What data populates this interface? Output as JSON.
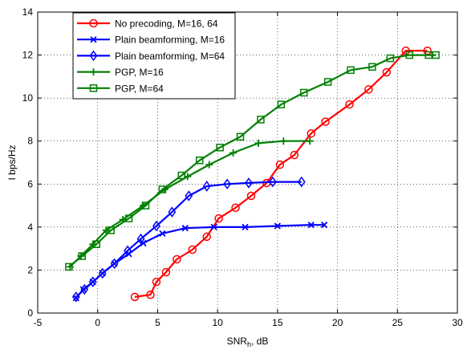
{
  "chart_data": {
    "type": "line",
    "title": "",
    "xlabel_main": "SNR",
    "xlabel_sub": "h",
    "xlabel_unit": ", dB",
    "ylabel": "I bps/Hz",
    "xlim": [
      -5,
      30
    ],
    "ylim": [
      0,
      14
    ],
    "xticks": [
      -5,
      0,
      5,
      10,
      15,
      20,
      25,
      30
    ],
    "yticks": [
      0,
      2,
      4,
      6,
      8,
      10,
      12,
      14
    ],
    "grid": true,
    "grid_style": "dotted",
    "legend_position": "top-left",
    "series": [
      {
        "name": "No precoding, M=16, 64",
        "color": "#ff0000",
        "marker": "circle",
        "x": [
          3.1,
          4.4,
          4.9,
          5.7,
          6.6,
          7.9,
          9.1,
          10.1,
          11.5,
          12.8,
          14.1,
          15.2,
          16.4,
          17.8,
          19.0,
          21.0,
          22.6,
          24.1,
          25.7,
          27.5
        ],
        "y": [
          0.75,
          0.85,
          1.45,
          1.9,
          2.5,
          2.95,
          3.55,
          4.4,
          4.9,
          5.45,
          6.05,
          6.9,
          7.35,
          8.35,
          8.9,
          9.7,
          10.4,
          11.2,
          12.2,
          12.2
        ]
      },
      {
        "name": "Plain beamforming, M=16",
        "color": "#0000ff",
        "marker": "x",
        "x": [
          -1.8,
          -1.2,
          -0.4,
          0.4,
          1.4,
          2.6,
          3.8,
          5.4,
          7.3,
          9.7,
          12.3,
          15.0,
          17.8,
          18.9
        ],
        "y": [
          0.7,
          1.1,
          1.45,
          1.85,
          2.3,
          2.75,
          3.25,
          3.7,
          3.95,
          4.0,
          4.0,
          4.05,
          4.1,
          4.1
        ]
      },
      {
        "name": "Plain beamforming, M=64",
        "color": "#0000ff",
        "marker": "diamond",
        "x": [
          -1.8,
          -1.1,
          -0.4,
          0.4,
          1.4,
          2.5,
          3.6,
          4.9,
          6.2,
          7.6,
          9.1,
          10.8,
          12.6,
          14.6,
          17.0
        ],
        "y": [
          0.75,
          1.1,
          1.45,
          1.85,
          2.3,
          2.9,
          3.45,
          4.05,
          4.7,
          5.45,
          5.9,
          6.0,
          6.05,
          6.1,
          6.1
        ]
      },
      {
        "name": "PGP, M=16",
        "color": "#008000",
        "marker": "plus",
        "x": [
          -2.3,
          -1.4,
          -0.4,
          0.7,
          2.1,
          3.8,
          5.6,
          7.5,
          9.3,
          11.3,
          13.4,
          15.5,
          17.7
        ],
        "y": [
          2.15,
          2.65,
          3.2,
          3.85,
          4.35,
          5.0,
          5.75,
          6.35,
          6.9,
          7.45,
          7.9,
          8.0,
          8.0
        ]
      },
      {
        "name": "PGP, M=64",
        "color": "#008000",
        "marker": "square",
        "x": [
          -2.4,
          -1.3,
          -0.1,
          1.1,
          2.6,
          4.0,
          5.4,
          7.0,
          8.5,
          10.2,
          11.9,
          13.6,
          15.3,
          17.2,
          19.2,
          21.1,
          22.9,
          24.4,
          26.0,
          27.6,
          28.2
        ],
        "y": [
          2.15,
          2.65,
          3.2,
          3.85,
          4.4,
          5.0,
          5.75,
          6.4,
          7.1,
          7.7,
          8.2,
          9.0,
          9.7,
          10.25,
          10.75,
          11.3,
          11.45,
          11.85,
          12.0,
          12.0,
          12.0
        ]
      }
    ]
  }
}
